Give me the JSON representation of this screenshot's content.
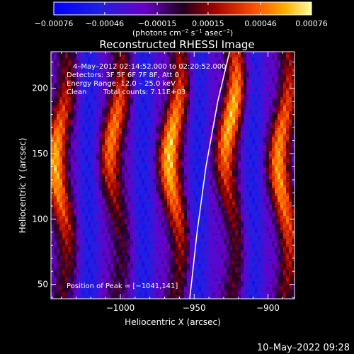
{
  "chart_data": {
    "type": "heatmap",
    "title": "Reconstructed RHESSI Image",
    "xlabel": "Heliocentric X (arcsec)",
    "ylabel": "Heliocentric Y (arcsec)",
    "xlim": [
      -1047,
      -882
    ],
    "ylim": [
      39,
      228
    ],
    "xticks": [
      -1000,
      -950,
      -900
    ],
    "xtick_labels": [
      "−1000",
      "−950",
      "−900"
    ],
    "yticks": [
      50,
      100,
      150,
      200
    ],
    "ytick_labels": [
      "50",
      "100",
      "150",
      "200"
    ],
    "colorbar": {
      "ticks": [
        -0.00076,
        -0.00046,
        -0.00015,
        0.00015,
        0.00046,
        0.00076
      ],
      "tick_labels": [
        "−0.00076",
        "−0.00046",
        "−0.00015",
        "0.00015",
        "0.00046",
        "0.00076"
      ],
      "units_main": "(photons cm",
      "units_exp1": "−2",
      "units_mid": " s",
      "units_exp2": "−1",
      "units_mid2": " asec",
      "units_exp3": "−2",
      "units_end": ")",
      "range": [
        -0.00076,
        0.00076
      ]
    },
    "annotations": {
      "time": "4–May–2012 02:14:52.000 to 02:20:52.000",
      "detectors": "Detectors: 3F 5F 6F 7F 8F, Att 0",
      "energy": "Energy Range: 12.0 – 25.0 keV",
      "clean_label": "Clean",
      "counts": "Total counts: 7.11E+03",
      "peak": "Position of Peak = [−1041,141]"
    },
    "limb_curve": [
      [
        -953,
        39
      ],
      [
        -948,
        90
      ],
      [
        -942,
        140
      ],
      [
        -934,
        190
      ],
      [
        -926,
        228
      ]
    ],
    "stripes": [
      {
        "x": -1040,
        "peak_y": 142,
        "spread": 52,
        "amplitude": 0.0007
      },
      {
        "x": -1003,
        "peak_y": 165,
        "spread": 48,
        "amplitude": 0.00062
      },
      {
        "x": -963,
        "peak_y": 150,
        "spread": 58,
        "amplitude": 0.00074
      },
      {
        "x": -925,
        "peak_y": 178,
        "spread": 55,
        "amplitude": 0.00072
      },
      {
        "x": -889,
        "peak_y": 140,
        "spread": 72,
        "amplitude": 0.00066
      }
    ],
    "grid": false
  },
  "footer": {
    "timestamp": "10–May–2022 09:28"
  }
}
